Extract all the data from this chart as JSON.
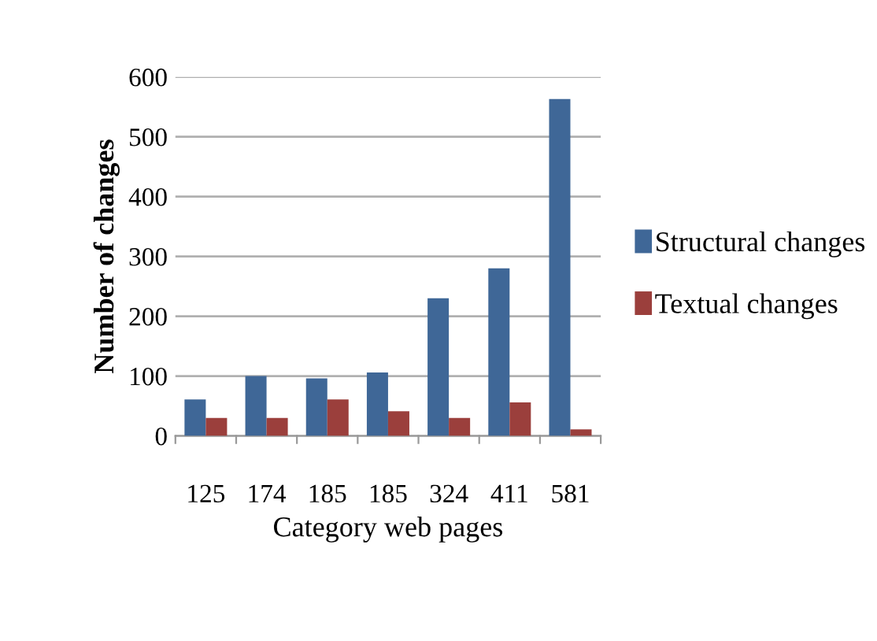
{
  "chart_data": {
    "type": "bar",
    "xlabel": "Category web pages",
    "ylabel": "Number of changes",
    "categories": [
      "125",
      "174",
      "185",
      "185",
      "324",
      "411",
      "581"
    ],
    "series": [
      {
        "name": "Structural changes",
        "color": "#3f6797",
        "values": [
          61,
          100,
          96,
          106,
          230,
          280,
          563
        ]
      },
      {
        "name": "Textual changes",
        "color": "#9b3f3c",
        "values": [
          30,
          30,
          61,
          41,
          30,
          56,
          11
        ]
      }
    ],
    "ylim": [
      0,
      600
    ],
    "yticks": [
      0,
      100,
      200,
      300,
      400,
      500,
      600
    ],
    "grid": "y",
    "legend": "right"
  }
}
